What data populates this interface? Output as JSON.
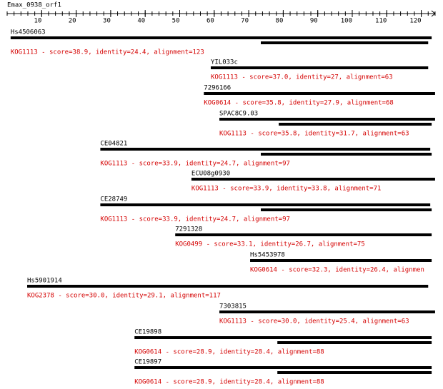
{
  "header": {
    "title": "Emax_0938_orf1"
  },
  "ruler": {
    "length": 124,
    "ticks": [
      10,
      20,
      30,
      40,
      50,
      60,
      70,
      80,
      90,
      100,
      110,
      120
    ]
  },
  "hits": [
    {
      "name": "Hs4506063",
      "description": "KOG1113 - score=38.9, identity=24.4, alignment=123",
      "segments": [
        [
          1,
          123
        ],
        [
          73.5,
          122
        ]
      ]
    },
    {
      "name": "YIL033c",
      "description": "KOG1113 - score=37.0, identity=27, alignment=63",
      "segments": [
        [
          59,
          122
        ]
      ]
    },
    {
      "name": "7296166",
      "description": "KOG0614 - score=35.8, identity=27.9, alignment=68",
      "segments": [
        [
          57,
          124
        ]
      ]
    },
    {
      "name": "SPAC8C9.03",
      "description": "KOG1113 - score=35.8, identity=31.7, alignment=63",
      "segments": [
        [
          61.5,
          124
        ],
        [
          78.7,
          123
        ]
      ]
    },
    {
      "name": "CE04821",
      "description": "KOG1113 - score=33.9, identity=24.7, alignment=97",
      "segments": [
        [
          27,
          122.6
        ],
        [
          73.5,
          123
        ]
      ]
    },
    {
      "name": "ECU08g0930",
      "description": "KOG1113 - score=33.9, identity=33.8, alignment=71",
      "segments": [
        [
          53.4,
          124
        ]
      ]
    },
    {
      "name": "CE28749",
      "description": "KOG1113 - score=33.9, identity=24.7, alignment=97",
      "segments": [
        [
          27,
          122.6
        ],
        [
          73.5,
          123
        ]
      ]
    },
    {
      "name": "7291328",
      "description": "KOG0499 - score=33.1, identity=26.7, alignment=75",
      "segments": [
        [
          48.7,
          123
        ]
      ]
    },
    {
      "name": "Hs5453978",
      "description": "KOG0614 - score=32.3, identity=26.4, alignmen",
      "segments": [
        [
          70.4,
          123
        ]
      ]
    },
    {
      "name": "Hs5901914",
      "description": "KOG2378 - score=30.0, identity=29.1, alignment=117",
      "segments": [
        [
          5.8,
          122
        ]
      ]
    },
    {
      "name": "7303815",
      "description": "KOG1113 - score=30.0, identity=25.4, alignment=63",
      "segments": [
        [
          61.5,
          124
        ]
      ]
    },
    {
      "name": "CE19898",
      "description": "KOG0614 - score=28.9, identity=28.4, alignment=88",
      "segments": [
        [
          36.9,
          123
        ],
        [
          78.3,
          123
        ]
      ]
    },
    {
      "name": "CE19897",
      "description": "KOG0614 - score=28.9, identity=28.4, alignment=88",
      "segments": [
        [
          36.9,
          123
        ],
        [
          78.3,
          123
        ]
      ]
    }
  ]
}
